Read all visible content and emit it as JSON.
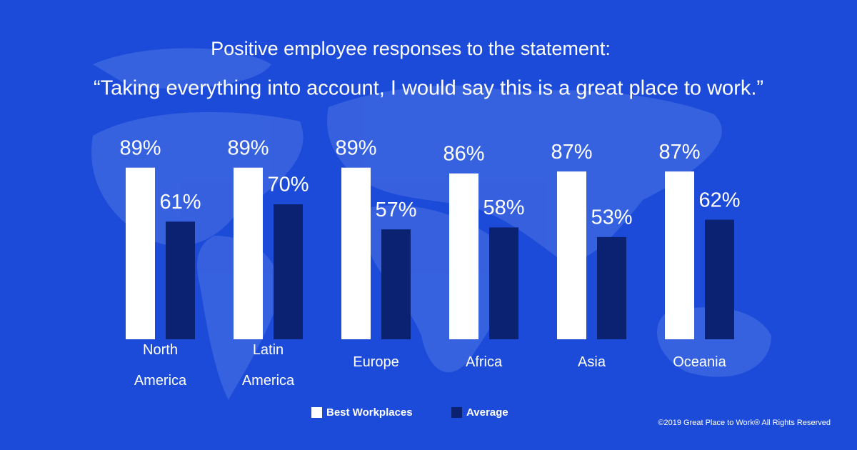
{
  "chart_data": {
    "type": "bar",
    "title": "Positive employee responses to the statement:",
    "subtitle": "“Taking everything into account, I would say this is a great place to work.”",
    "categories": [
      "North America",
      "Latin America",
      "Europe",
      "Africa",
      "Asia",
      "Oceania"
    ],
    "series": [
      {
        "name": "Best Workplaces",
        "color": "#ffffff",
        "values": [
          89,
          89,
          89,
          86,
          87,
          87
        ],
        "value_labels": [
          "89%",
          "89%",
          "89%",
          "86%",
          "87%",
          "87%"
        ]
      },
      {
        "name": "Average",
        "color": "#0b2272",
        "values": [
          61,
          70,
          57,
          58,
          53,
          62
        ],
        "value_labels": [
          "61%",
          "70%",
          "57%",
          "58%",
          "53%",
          "62%"
        ]
      }
    ],
    "footnote": "©2019 Great Place to Work® All Rights Reserved"
  }
}
